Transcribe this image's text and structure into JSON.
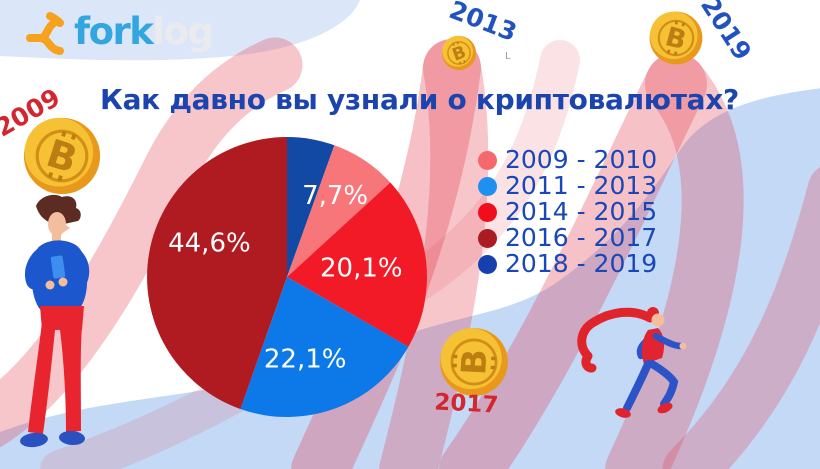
{
  "brand": {
    "name_primary": "fork",
    "name_secondary": "log"
  },
  "title": "Как давно вы узнали о криптовалютах?",
  "artifact": "L",
  "legend": {
    "position": "right",
    "items": [
      {
        "label": "2009 - 2010",
        "color": "#f5696e"
      },
      {
        "label": "2011 - 2013",
        "color": "#1e90f0"
      },
      {
        "label": "2014 - 2015",
        "color": "#f20d1c"
      },
      {
        "label": "2016 - 2017",
        "color": "#a81c22"
      },
      {
        "label": "2018 - 2019",
        "color": "#1540ad"
      }
    ]
  },
  "chart_data": {
    "type": "pie",
    "title": "Как давно вы узнали о криптовалютах?",
    "unit": "percent",
    "start_angle_deg": 0,
    "direction": "clockwise",
    "legend_position": "right",
    "slices": [
      {
        "label": "2018 - 2019",
        "value": 5.5,
        "display": "",
        "color": "#1149a5"
      },
      {
        "label": "2009 - 2010",
        "value": 7.7,
        "display": "7,7%",
        "color": "#f7767a"
      },
      {
        "label": "2014 - 2015",
        "value": 20.1,
        "display": "20,1%",
        "color": "#f21a26"
      },
      {
        "label": "2011 - 2013",
        "value": 22.1,
        "display": "22,1%",
        "color": "#0d78e8"
      },
      {
        "label": "2016 - 2017",
        "value": 44.6,
        "display": "44,6%",
        "color": "#b01b22"
      }
    ]
  },
  "year_markers": [
    {
      "text": "2009",
      "color": "#d4262e"
    },
    {
      "text": "2013",
      "color": "#2153c0"
    },
    {
      "text": "2019",
      "color": "#2153c0"
    },
    {
      "text": "2017",
      "color": "#d4262e"
    }
  ]
}
